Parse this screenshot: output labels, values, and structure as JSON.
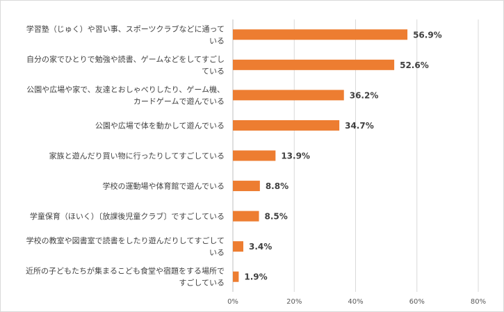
{
  "chart_data": {
    "type": "bar",
    "orientation": "horizontal",
    "categories": [
      [
        "学習塾（じゅく）や習い事、スポーツクラブなどに通って",
        "いる"
      ],
      [
        "自分の家でひとりで勉強や読書、ゲームなどをしてすごし",
        "ている"
      ],
      [
        "公園や広場や家で、友達とおしゃべりしたり、ゲーム機、",
        "カードゲームで遊んでいる"
      ],
      [
        "公園や広場で体を動かして遊んでいる"
      ],
      [
        "家族と遊んだり買い物に行ったりしてすごしている"
      ],
      [
        "学校の運動場や体育館で遊んでいる"
      ],
      [
        "学童保育（ほいく）〔放課後児童クラブ〕ですごしている"
      ],
      [
        "学校の教室や図書室で読書をしたり遊んだりしてすごして",
        "いる"
      ],
      [
        "近所の子どもたちが集まるこども食堂や宿題をする場所で",
        "すごしている"
      ]
    ],
    "values": [
      56.9,
      52.6,
      36.2,
      34.7,
      13.9,
      8.8,
      8.5,
      3.4,
      1.9
    ],
    "value_labels": [
      "56.9%",
      "52.6%",
      "36.2%",
      "34.7%",
      "13.9%",
      "8.8%",
      "8.5%",
      "3.4%",
      "1.9%"
    ],
    "xlim": [
      0,
      80
    ],
    "xticks": [
      0,
      20,
      40,
      60,
      80
    ],
    "xtick_labels": [
      "0%",
      "20%",
      "40%",
      "60%",
      "80%"
    ],
    "grid": true,
    "colors": {
      "bar": "#ED7D31",
      "grid": "#D9D9D9",
      "axis": "#BFBFBF"
    }
  }
}
